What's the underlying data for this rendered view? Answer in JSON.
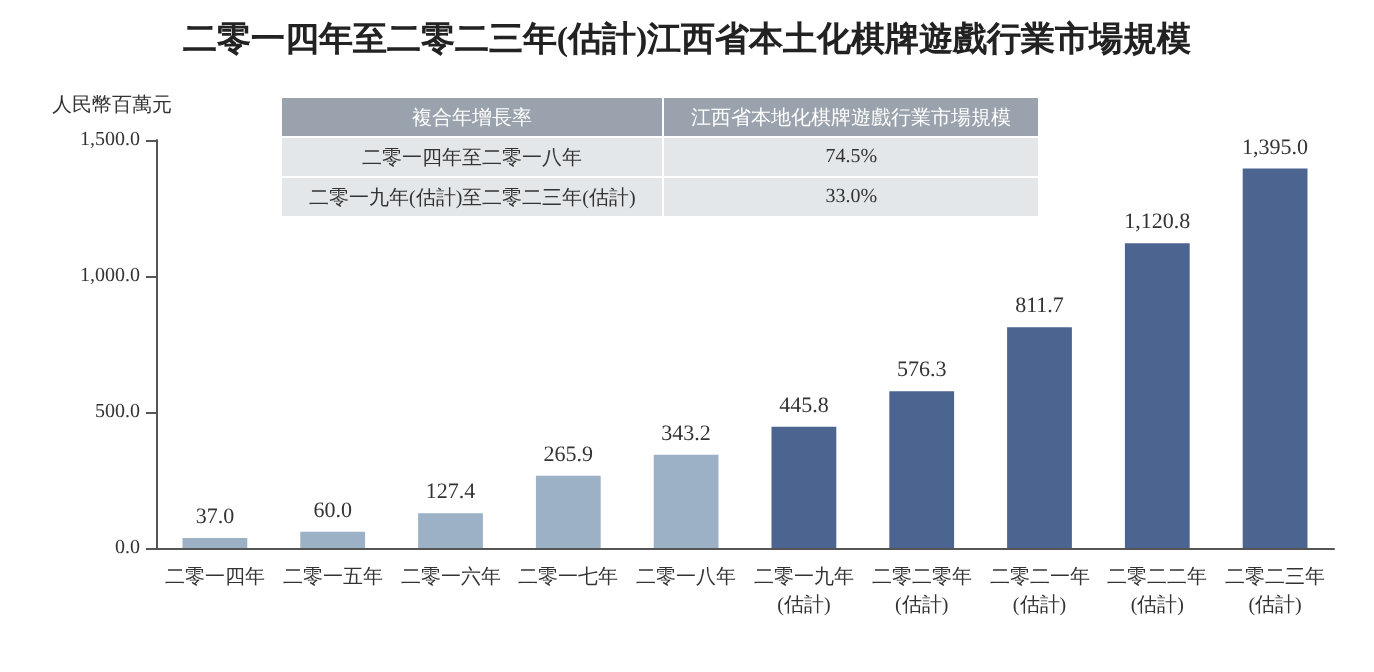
{
  "chart_data": {
    "type": "bar",
    "title": "二零一四年至二零二三年(估計)江西省本土化棋牌遊戲行業市場規模",
    "ylabel": "人民幣百萬元",
    "categories": [
      "二零一四年",
      "二零一五年",
      "二零一六年",
      "二零一七年",
      "二零一八年",
      "二零一九年\n(估計)",
      "二零二零年\n(估計)",
      "二零二一年\n(估計)",
      "二零二二年\n(估計)",
      "二零二三年\n(估計)"
    ],
    "values": [
      37.0,
      60.0,
      127.4,
      265.9,
      343.2,
      445.8,
      576.3,
      811.7,
      1120.8,
      1395.0
    ],
    "value_labels": [
      "37.0",
      "60.0",
      "127.4",
      "265.9",
      "343.2",
      "445.8",
      "576.3",
      "811.7",
      "1,120.8",
      "1,395.0"
    ],
    "colors": [
      "#9db1c6",
      "#9db1c6",
      "#9db1c6",
      "#9db1c6",
      "#9db1c6",
      "#4b6590",
      "#4b6590",
      "#4b6590",
      "#4b6590",
      "#4b6590"
    ],
    "ylim": [
      0,
      1500
    ],
    "yticks": [
      {
        "value": 0,
        "label": "0.0"
      },
      {
        "value": 500,
        "label": "500.0"
      },
      {
        "value": 1000,
        "label": "1,000.0"
      },
      {
        "value": 1500,
        "label": "1,500.0"
      }
    ],
    "annotations": [
      "複合年增長率",
      "江西省本地化棋牌遊戲行業市場規模",
      "二零一四年至二零一八年",
      "74.5%",
      "二零一九年(估計)至二零二三年(估計)",
      "33.0%"
    ],
    "grid": false
  }
}
